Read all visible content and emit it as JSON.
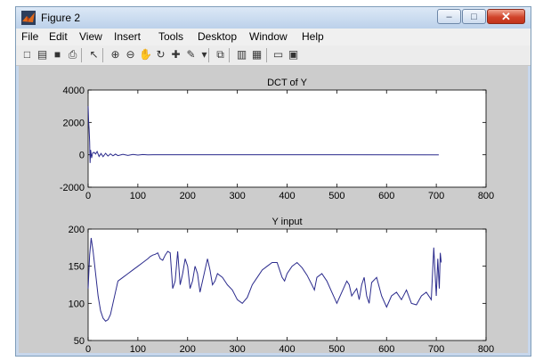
{
  "window": {
    "title": "Figure 2",
    "minimize_glyph": "–",
    "maximize_glyph": "□",
    "close_glyph": "✕"
  },
  "menu": {
    "items": [
      "File",
      "Edit",
      "View",
      "Insert",
      "Tools",
      "Desktop",
      "Window",
      "Help"
    ]
  },
  "toolbar": {
    "buttons": [
      {
        "name": "new-figure-icon",
        "glyph": "□"
      },
      {
        "name": "open-file-icon",
        "glyph": "▤"
      },
      {
        "name": "save-icon",
        "glyph": "■"
      },
      {
        "name": "print-icon",
        "glyph": "⎙"
      },
      {
        "name": "edit-plot-pointer-icon",
        "glyph": "↖"
      },
      {
        "name": "zoom-in-icon",
        "glyph": "⊕"
      },
      {
        "name": "zoom-out-icon",
        "glyph": "⊖"
      },
      {
        "name": "pan-hand-icon",
        "glyph": "✋"
      },
      {
        "name": "rotate-3d-icon",
        "glyph": "↻"
      },
      {
        "name": "data-cursor-icon",
        "glyph": "✚"
      },
      {
        "name": "brush-icon",
        "glyph": "✎"
      },
      {
        "name": "brush-dropdown-icon",
        "glyph": "▾"
      },
      {
        "name": "link-plot-icon",
        "glyph": "⧉"
      },
      {
        "name": "insert-colorbar-icon",
        "glyph": "▥"
      },
      {
        "name": "insert-legend-icon",
        "glyph": "▦"
      },
      {
        "name": "hide-plot-tools-icon",
        "glyph": "▭"
      },
      {
        "name": "show-plot-tools-icon",
        "glyph": "▣"
      }
    ]
  },
  "colors": {
    "line": "#2a2a8c",
    "axes_bg": "#ffffff",
    "figure_bg": "#cccccc"
  },
  "chart_data": [
    {
      "type": "line",
      "title": "DCT of Y",
      "xlim": [
        0,
        800
      ],
      "ylim": [
        -2000,
        4000
      ],
      "xticks": [
        0,
        100,
        200,
        300,
        400,
        500,
        600,
        700,
        800
      ],
      "yticks": [
        -2000,
        0,
        2000,
        4000
      ],
      "series": [
        {
          "x": [
            0,
            1,
            2,
            3,
            4,
            5,
            7,
            9,
            12,
            15,
            18,
            22,
            26,
            30,
            35,
            40,
            45,
            50,
            55,
            60,
            70,
            80,
            90,
            100,
            110,
            120,
            130,
            705
          ],
          "y": [
            3000,
            2000,
            1600,
            800,
            -500,
            300,
            -200,
            100,
            150,
            50,
            200,
            -100,
            80,
            -120,
            90,
            -80,
            60,
            -60,
            40,
            -50,
            30,
            -40,
            20,
            -20,
            15,
            -10,
            5,
            0
          ]
        }
      ]
    },
    {
      "type": "line",
      "title": "Y input",
      "xlim": [
        0,
        800
      ],
      "ylim": [
        50,
        200
      ],
      "xticks": [
        0,
        100,
        200,
        300,
        400,
        500,
        600,
        700,
        800
      ],
      "yticks": [
        50,
        100,
        150,
        200
      ],
      "series": [
        {
          "x": [
            0,
            3,
            6,
            10,
            15,
            20,
            25,
            30,
            35,
            40,
            45,
            50,
            55,
            60,
            70,
            80,
            90,
            100,
            110,
            120,
            125,
            130,
            135,
            140,
            145,
            150,
            155,
            160,
            165,
            170,
            175,
            180,
            185,
            190,
            195,
            200,
            205,
            210,
            215,
            220,
            225,
            230,
            235,
            240,
            245,
            250,
            255,
            260,
            270,
            280,
            290,
            300,
            310,
            320,
            330,
            340,
            350,
            360,
            370,
            380,
            385,
            390,
            395,
            400,
            410,
            420,
            430,
            440,
            450,
            455,
            460,
            470,
            480,
            490,
            500,
            510,
            520,
            525,
            530,
            540,
            545,
            550,
            555,
            560,
            565,
            570,
            580,
            590,
            600,
            610,
            620,
            630,
            640,
            650,
            660,
            670,
            680,
            690,
            695,
            700,
            703,
            706,
            708,
            710
          ],
          "y": [
            120,
            165,
            188,
            170,
            140,
            110,
            90,
            80,
            76,
            78,
            85,
            100,
            115,
            130,
            135,
            140,
            145,
            150,
            155,
            160,
            163,
            165,
            166,
            168,
            160,
            158,
            165,
            170,
            168,
            120,
            130,
            170,
            125,
            140,
            160,
            150,
            120,
            130,
            150,
            140,
            115,
            130,
            145,
            160,
            145,
            125,
            130,
            140,
            135,
            125,
            118,
            105,
            100,
            108,
            125,
            135,
            145,
            150,
            155,
            155,
            145,
            135,
            130,
            140,
            150,
            155,
            148,
            138,
            125,
            118,
            135,
            140,
            130,
            115,
            100,
            115,
            130,
            125,
            110,
            120,
            105,
            125,
            135,
            110,
            100,
            128,
            135,
            110,
            95,
            110,
            115,
            105,
            118,
            100,
            98,
            110,
            115,
            105,
            175,
            110,
            160,
            120,
            168,
            155
          ]
        }
      ]
    }
  ]
}
